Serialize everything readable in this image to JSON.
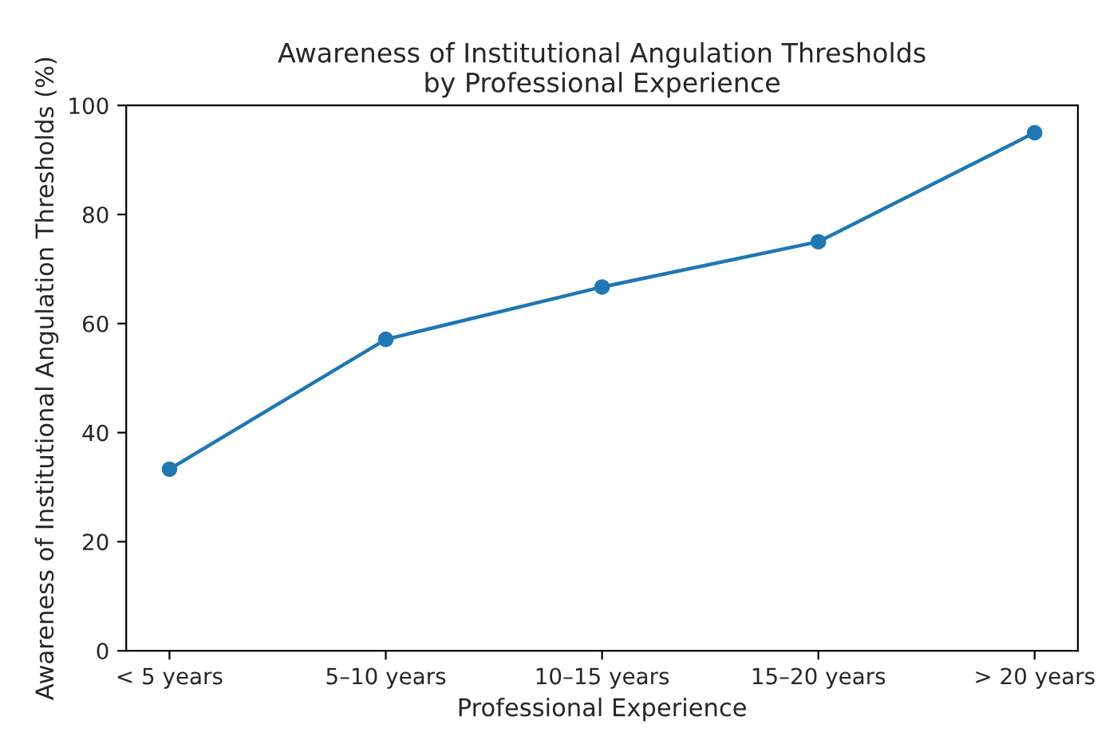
{
  "chart_data": {
    "type": "line",
    "title": "Awareness of Institutional Angulation Thresholds\nby Professional Experience",
    "xlabel": "Professional Experience",
    "ylabel": "Awareness of Institutional Angulation Thresholds (%)",
    "categories": [
      "< 5 years",
      "5–10 years",
      "10–15 years",
      "15–20 years",
      "> 20 years"
    ],
    "series": [
      {
        "color": "#1f77b4",
        "values": [
          33.3,
          57.1,
          66.7,
          75.0,
          95.0
        ]
      }
    ],
    "ylim": [
      0,
      100
    ],
    "yticks": [
      0,
      20,
      40,
      60,
      80,
      100
    ],
    "marker": "circle",
    "line_style": "solid",
    "grid": false
  }
}
